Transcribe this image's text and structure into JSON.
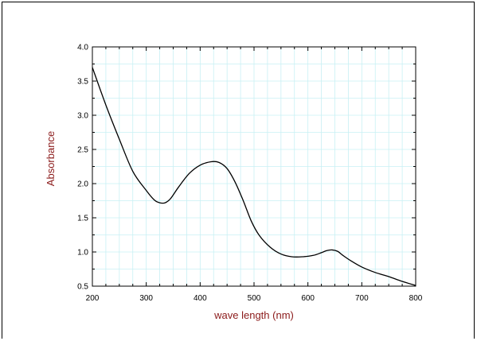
{
  "chart_data": {
    "type": "line",
    "title": "",
    "xlabel": "wave length (nm)",
    "ylabel": "Absorbance",
    "xlim": [
      200,
      800
    ],
    "ylim": [
      0.5,
      4.0
    ],
    "x_ticks": [
      "200",
      "300",
      "400",
      "500",
      "600",
      "700",
      "800"
    ],
    "y_ticks": [
      "0.5",
      "1.0",
      "1.5",
      "2.0",
      "2.5",
      "3.0",
      "3.5",
      "4.0"
    ],
    "grid": true,
    "colors": {
      "line": "#000000",
      "grid": "#c8f0f4",
      "axis_title": "#8b1a1a"
    },
    "series": [
      {
        "x": [
          200,
          225,
          250,
          275,
          300,
          315,
          325,
          335,
          345,
          360,
          380,
          400,
          420,
          435,
          450,
          465,
          480,
          495,
          510,
          530,
          550,
          570,
          590,
          610,
          625,
          635,
          645,
          655,
          665,
          680,
          700,
          725,
          750,
          775,
          800
        ],
        "values": [
          3.7,
          3.15,
          2.65,
          2.18,
          1.9,
          1.76,
          1.72,
          1.72,
          1.78,
          1.95,
          2.15,
          2.27,
          2.32,
          2.31,
          2.22,
          2.02,
          1.75,
          1.45,
          1.24,
          1.07,
          0.97,
          0.93,
          0.93,
          0.95,
          0.99,
          1.02,
          1.03,
          1.01,
          0.95,
          0.87,
          0.78,
          0.7,
          0.64,
          0.57,
          0.51
        ]
      }
    ]
  }
}
